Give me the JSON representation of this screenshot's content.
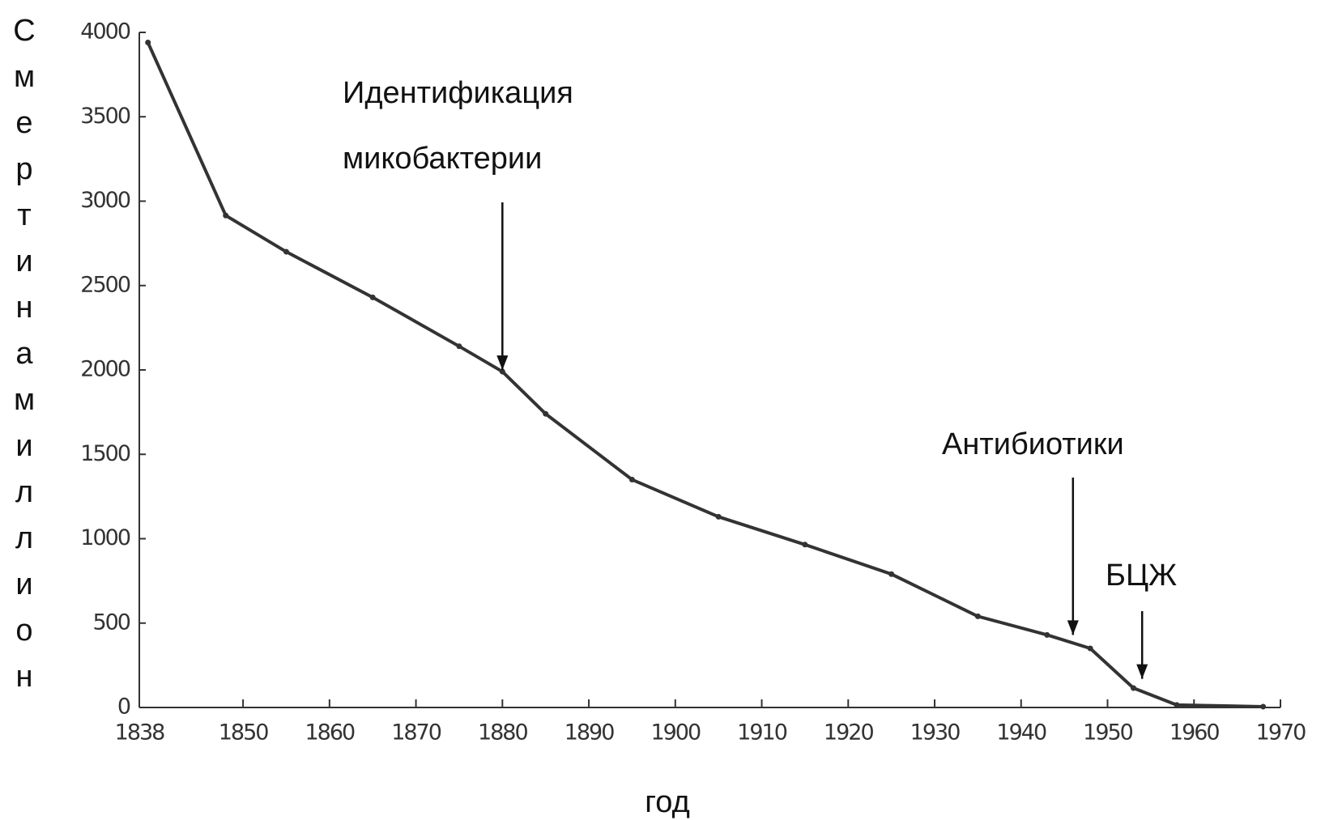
{
  "chart_data": {
    "type": "line",
    "x_label": "год",
    "y_label": "Смертинамиллион",
    "x": [
      1839,
      1848,
      1855,
      1865,
      1875,
      1880,
      1885,
      1895,
      1905,
      1915,
      1925,
      1935,
      1943,
      1948,
      1953,
      1958,
      1968
    ],
    "series": [
      {
        "color": "#333333",
        "values": [
          3940,
          2915,
          2700,
          2430,
          2140,
          1990,
          1740,
          1350,
          1130,
          965,
          790,
          540,
          430,
          350,
          115,
          15,
          5
        ]
      }
    ],
    "xlim": [
      1838,
      1970
    ],
    "xticks": [
      1838,
      1850,
      1860,
      1870,
      1880,
      1890,
      1900,
      1910,
      1920,
      1930,
      1940,
      1950,
      1960,
      1970
    ],
    "ylim": [
      0,
      4000
    ],
    "yticks": [
      0,
      500,
      1000,
      1500,
      2000,
      2500,
      3000,
      3500,
      4000
    ],
    "annotations": [
      {
        "lines": [
          "Идентификация",
          "микобактерии"
        ],
        "x": 1880,
        "y": 1990
      },
      {
        "lines": [
          "Антибиотики"
        ],
        "x": 1946,
        "y": 420
      },
      {
        "lines": [
          "БЦЖ"
        ],
        "x": 1954,
        "y": 160
      }
    ]
  }
}
